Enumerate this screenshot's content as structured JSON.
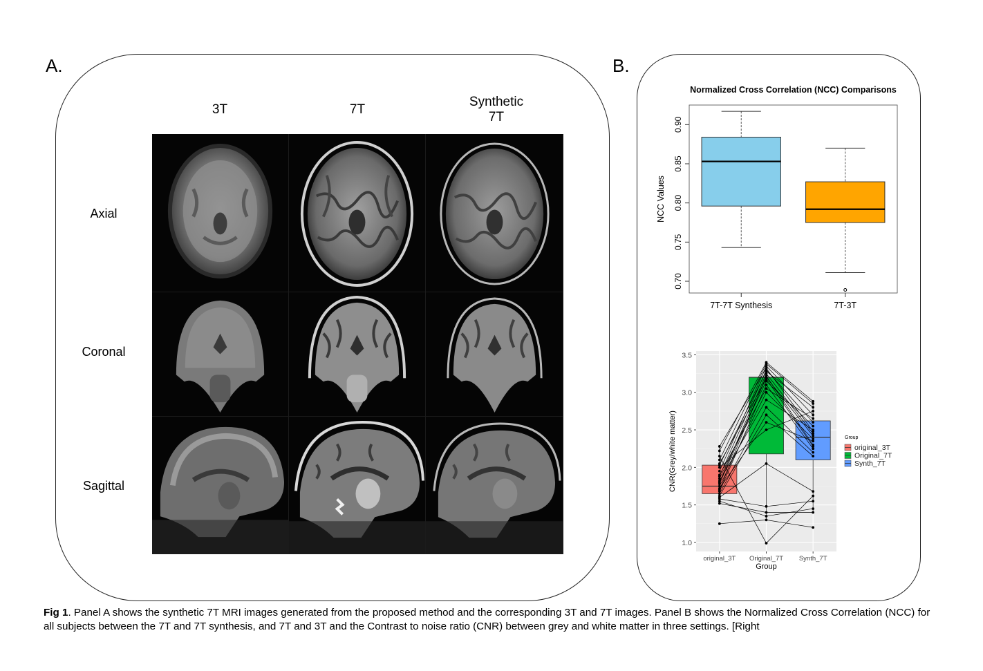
{
  "panel_a": {
    "letter": "A.",
    "columns": [
      "3T",
      "7T",
      "Synthetic\n7T"
    ],
    "rows": [
      "Axial",
      "Coronal",
      "Sagittal"
    ]
  },
  "panel_b": {
    "letter": "B."
  },
  "caption": {
    "bold": "Fig 1",
    "text": ". Panel A shows the synthetic 7T MRI images generated from the proposed method and the corresponding 3T and 7T images. Panel B shows the Normalized Cross Correlation (NCC) for all subjects between the 7T and 7T synthesis, and 7T and 3T and the Contrast to noise ratio (CNR) between grey and white matter in three settings. [Right"
  },
  "chart_data": [
    {
      "type": "box",
      "title": "Normalized Cross Correlation (NCC) Comparisons",
      "xlabel": "",
      "ylabel": "NCC Values",
      "ylim": [
        0.685,
        0.925
      ],
      "yticks": [
        "0.70",
        "0.75",
        "0.80",
        "0.85",
        "0.90"
      ],
      "categories": [
        "7T-7T Synthesis",
        "7T-3T"
      ],
      "boxes": [
        {
          "category": "7T-7T Synthesis",
          "min": 0.743,
          "q1": 0.796,
          "median": 0.853,
          "q3": 0.884,
          "max": 0.917,
          "outliers": [],
          "color": "#87ceeb"
        },
        {
          "category": "7T-3T",
          "min": 0.711,
          "q1": 0.775,
          "median": 0.792,
          "q3": 0.827,
          "max": 0.87,
          "outliers": [
            0.689
          ],
          "color": "#ffa500"
        }
      ]
    },
    {
      "type": "box",
      "title": "",
      "xlabel": "Group",
      "ylabel": "CNR(Grey/white matter)",
      "ylim": [
        0.88,
        3.55
      ],
      "yticks": [
        "1.0",
        "1.5",
        "2.0",
        "2.5",
        "3.0",
        "3.5"
      ],
      "categories": [
        "original_3T",
        "Original_7T",
        "Synth_7T"
      ],
      "legend": {
        "title": "Group",
        "entries": [
          "original_3T",
          "Original_7T",
          "Synth_7T"
        ],
        "position": "right"
      },
      "boxes": [
        {
          "category": "original_3T",
          "min": 1.52,
          "q1": 1.65,
          "median": 1.75,
          "q3": 2.03,
          "max": 2.28,
          "outliers": [
            1.25
          ],
          "color": "#f8766d"
        },
        {
          "category": "Original_7T",
          "min": 1.3,
          "q1": 2.18,
          "median": 3.2,
          "q3": 3.2,
          "max": 3.4,
          "outliers": [
            0.99
          ],
          "color": "#00ba38"
        },
        {
          "category": "Synth_7T",
          "min": 1.4,
          "q1": 2.1,
          "median": 2.4,
          "q3": 2.62,
          "max": 2.88,
          "outliers": [
            1.2
          ],
          "color": "#619cff"
        }
      ],
      "paired_points": {
        "original_3T": [
          1.25,
          1.52,
          1.55,
          1.58,
          1.6,
          1.62,
          1.65,
          1.68,
          1.7,
          1.72,
          1.75,
          1.78,
          1.8,
          1.82,
          1.85,
          1.88,
          1.9,
          1.95,
          2.0,
          2.03,
          2.05,
          2.1,
          2.15,
          2.22,
          2.28
        ],
        "Original_7T": [
          1.3,
          1.4,
          1.35,
          1.48,
          2.05,
          2.7,
          2.8,
          3.1,
          3.22,
          2.6,
          3.0,
          3.2,
          3.25,
          2.9,
          3.15,
          3.3,
          3.05,
          3.35,
          2.5,
          3.28,
          3.18,
          3.38,
          0.99,
          3.4,
          3.32
        ],
        "Synth_7T": [
          1.2,
          1.4,
          1.45,
          1.55,
          1.68,
          2.15,
          2.2,
          2.25,
          2.3,
          2.35,
          2.38,
          2.42,
          2.45,
          2.5,
          2.55,
          2.6,
          2.65,
          2.7,
          2.75,
          2.8,
          2.28,
          2.85,
          1.62,
          2.88,
          2.48
        ]
      }
    }
  ]
}
